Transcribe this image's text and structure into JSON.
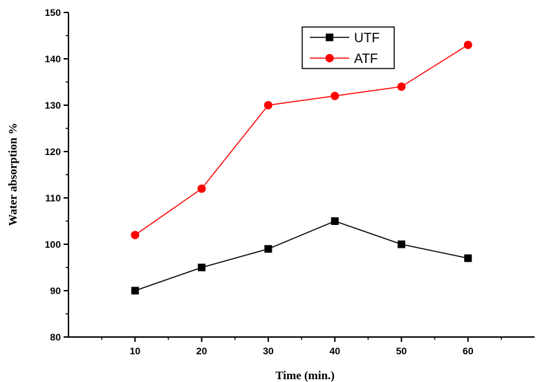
{
  "chart_data": {
    "type": "line",
    "xlabel": "Time (min.)",
    "ylabel": "Water absorption %",
    "x": [
      10,
      20,
      30,
      40,
      50,
      60
    ],
    "xlim": [
      0,
      70
    ],
    "ylim": [
      80,
      150
    ],
    "xticks": [
      10,
      20,
      30,
      40,
      50,
      60
    ],
    "yticks": [
      80,
      90,
      100,
      110,
      120,
      130,
      140,
      150
    ],
    "grid": false,
    "legend_position": "top-right",
    "series": [
      {
        "name": "UTF",
        "color": "#000000",
        "marker": "square",
        "values": [
          90,
          95,
          99,
          105,
          100,
          97
        ]
      },
      {
        "name": "ATF",
        "color": "#ff0000",
        "marker": "circle",
        "values": [
          102,
          112,
          130,
          132,
          134,
          143
        ]
      }
    ]
  }
}
